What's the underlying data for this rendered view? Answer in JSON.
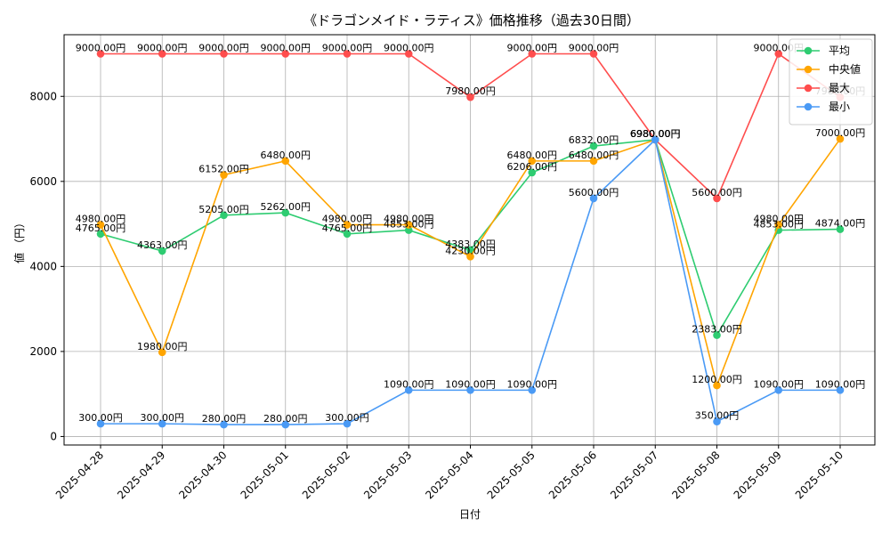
{
  "chart_data": {
    "type": "line",
    "title": "《ドラゴンメイド・ラティス》価格推移（過去30日間）",
    "xlabel": "日付",
    "ylabel": "値 （円）",
    "ylim": [
      -200,
      9450
    ],
    "yticks": [
      0,
      2000,
      4000,
      6000,
      8000
    ],
    "grid": true,
    "legend_position": "top-right",
    "label_suffix": "円",
    "categories": [
      "2025-04-28",
      "2025-04-29",
      "2025-04-30",
      "2025-05-01",
      "2025-05-02",
      "2025-05-03",
      "2025-05-04",
      "2025-05-05",
      "2025-05-06",
      "2025-05-07",
      "2025-05-08",
      "2025-05-09",
      "2025-05-10"
    ],
    "series": [
      {
        "name": "平均",
        "color": "#2ecc71",
        "values": [
          4765,
          4363,
          5205,
          5262,
          4765,
          4853,
          4383,
          6206,
          6832,
          6980,
          2383,
          4853,
          4874
        ]
      },
      {
        "name": "中央値",
        "color": "#ffa500",
        "values": [
          4980,
          1980,
          6152,
          6480,
          4980,
          4980,
          4230,
          6480,
          6480,
          6980,
          1200,
          4980,
          7000
        ]
      },
      {
        "name": "最大",
        "color": "#ff4d4d",
        "values": [
          9000,
          9000,
          9000,
          9000,
          9000,
          9000,
          7980,
          9000,
          9000,
          6980,
          5600,
          9000,
          7980
        ]
      },
      {
        "name": "最小",
        "color": "#4a9af5",
        "values": [
          300,
          300,
          280,
          280,
          300,
          1090,
          1090,
          1090,
          5600,
          6980,
          350,
          1090,
          1090
        ]
      }
    ]
  }
}
